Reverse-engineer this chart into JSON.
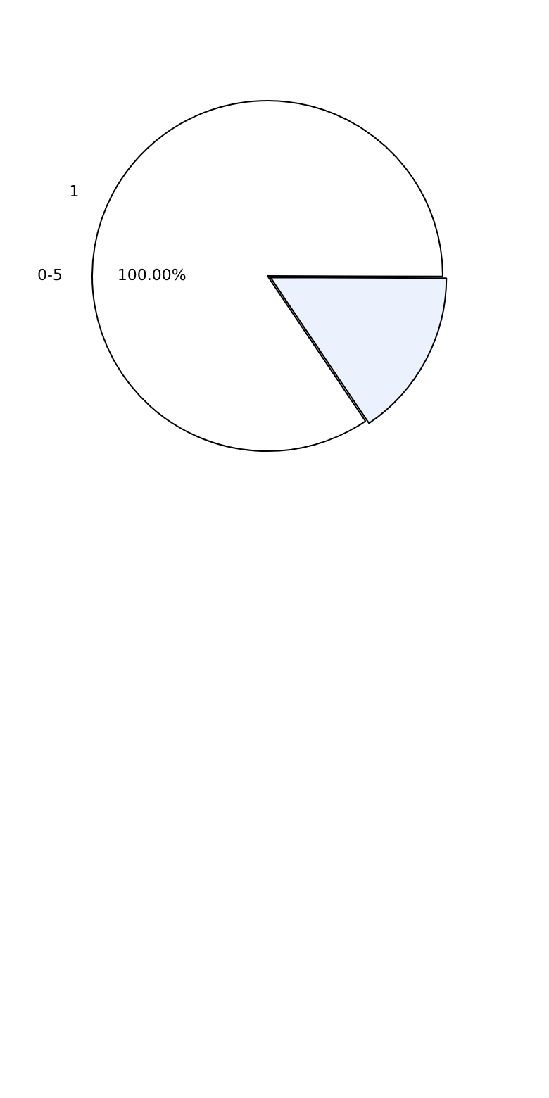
{
  "chart_data": {
    "type": "pie",
    "categories": [
      "0-5",
      null
    ],
    "values": [
      84.5,
      15.5
    ],
    "colors": [
      "#ffffff",
      "#ecf1fe"
    ],
    "annotations": [
      "1",
      "100.00%"
    ],
    "legend": false
  }
}
